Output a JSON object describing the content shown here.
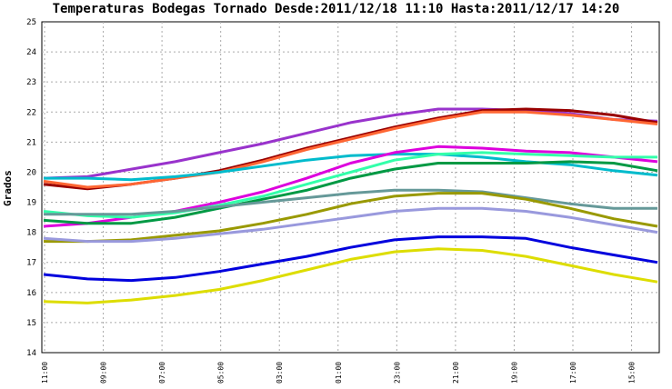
{
  "chart_data": {
    "type": "line",
    "title": "Temperaturas Bodegas Tornado Desde:2011/12/18 11:10 Hasta:2011/12/17 14:20",
    "ylabel": "Grados",
    "xlabel": "",
    "ylim": [
      14,
      25
    ],
    "yticks": [
      "14",
      "15",
      "16",
      "17",
      "18",
      "19",
      "20",
      "21",
      "22",
      "23",
      "24",
      "25"
    ],
    "xticks": [
      "11:00",
      "09:00",
      "07:00",
      "05:00",
      "03:00",
      "01:00",
      "23:00",
      "21:00",
      "19:00",
      "17:00",
      "15:00"
    ],
    "grid": true,
    "x_positions_hours_back": [
      0,
      2,
      4,
      6,
      8,
      10,
      12,
      14,
      16,
      18,
      20,
      20.85
    ],
    "series": [
      {
        "color": "#9933cc",
        "values": [
          19.8,
          19.85,
          20.1,
          20.35,
          20.65,
          20.95,
          21.3,
          21.65,
          21.9,
          22.1,
          22.1,
          22.05,
          21.95,
          21.75,
          21.7
        ]
      },
      {
        "color": "#990000",
        "values": [
          19.6,
          19.45,
          19.6,
          19.8,
          20.05,
          20.4,
          20.8,
          21.15,
          21.5,
          21.8,
          22.05,
          22.1,
          22.05,
          21.9,
          21.65
        ]
      },
      {
        "color": "#ff6633",
        "values": [
          19.7,
          19.5,
          19.6,
          19.8,
          20.0,
          20.35,
          20.75,
          21.1,
          21.45,
          21.75,
          22.0,
          22.0,
          21.9,
          21.75,
          21.6
        ]
      },
      {
        "color": "#00bbcc",
        "values": [
          19.8,
          19.8,
          19.75,
          19.85,
          20.0,
          20.2,
          20.4,
          20.55,
          20.6,
          20.6,
          20.5,
          20.35,
          20.25,
          20.05,
          19.9
        ]
      },
      {
        "color": "#dd00dd",
        "values": [
          18.2,
          18.3,
          18.5,
          18.7,
          19.0,
          19.35,
          19.8,
          20.3,
          20.65,
          20.85,
          20.8,
          20.7,
          20.65,
          20.5,
          20.35
        ]
      },
      {
        "color": "#33ffaa",
        "values": [
          18.7,
          18.55,
          18.5,
          18.65,
          18.9,
          19.2,
          19.6,
          20.0,
          20.4,
          20.6,
          20.65,
          20.6,
          20.55,
          20.5,
          20.5
        ]
      },
      {
        "color": "#009944",
        "values": [
          18.4,
          18.3,
          18.3,
          18.5,
          18.8,
          19.1,
          19.4,
          19.8,
          20.1,
          20.3,
          20.3,
          20.3,
          20.35,
          20.3,
          20.05
        ]
      },
      {
        "color": "#669999",
        "values": [
          18.6,
          18.6,
          18.6,
          18.7,
          18.85,
          19.0,
          19.15,
          19.3,
          19.4,
          19.4,
          19.35,
          19.15,
          18.95,
          18.8,
          18.8
        ]
      },
      {
        "color": "#999900",
        "values": [
          17.7,
          17.7,
          17.75,
          17.9,
          18.05,
          18.3,
          18.6,
          18.95,
          19.2,
          19.3,
          19.3,
          19.1,
          18.8,
          18.45,
          18.2
        ]
      },
      {
        "color": "#9999dd",
        "values": [
          17.8,
          17.7,
          17.7,
          17.8,
          17.95,
          18.1,
          18.3,
          18.5,
          18.7,
          18.8,
          18.8,
          18.7,
          18.5,
          18.25,
          18.0
        ]
      },
      {
        "color": "#0000dd",
        "values": [
          16.6,
          16.45,
          16.4,
          16.5,
          16.7,
          16.95,
          17.2,
          17.5,
          17.75,
          17.85,
          17.85,
          17.8,
          17.5,
          17.25,
          17.0
        ]
      },
      {
        "color": "#dddd00",
        "values": [
          15.7,
          15.65,
          15.75,
          15.9,
          16.1,
          16.4,
          16.75,
          17.1,
          17.35,
          17.45,
          17.4,
          17.2,
          16.9,
          16.6,
          16.35
        ]
      }
    ]
  }
}
